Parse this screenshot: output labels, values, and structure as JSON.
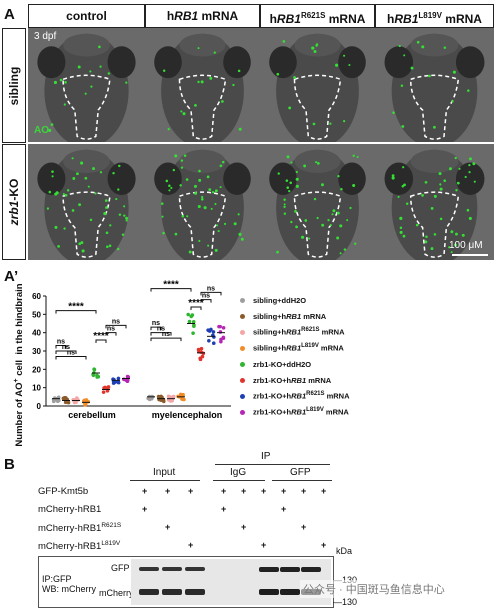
{
  "panel_a": {
    "letter": "A",
    "columns": [
      "control",
      "hRB1 mRNA",
      "hRB1R621S mRNA",
      "hRB1L819V mRNA"
    ],
    "column_parts": [
      {
        "pre": "control",
        "italic": "",
        "sup": "",
        "post": ""
      },
      {
        "pre": "h",
        "italic": "RB1",
        "sup": "",
        "post": " mRNA"
      },
      {
        "pre": "h",
        "italic": "RB1",
        "sup": "R621S",
        "post": " mRNA"
      },
      {
        "pre": "h",
        "italic": "RB1",
        "sup": "L819V",
        "post": " mRNA"
      }
    ],
    "rows": [
      "sibling",
      "zrb1-KO"
    ],
    "stage_label": "3 dpf",
    "stain_label": "AO",
    "scale_bar": "100 μM"
  },
  "panel_a2": {
    "letter": "A’",
    "chart_data": {
      "type": "scatter",
      "ylabel": "Number of AO+ cell  in the hindbrain",
      "ylim": [
        0,
        60
      ],
      "yticks": [
        0,
        10,
        20,
        30,
        40,
        50,
        60
      ],
      "groups": [
        "cerebellum",
        "myelencephalon"
      ],
      "series": [
        {
          "name": "sibling+ddH2O",
          "color": "#9e9e9e",
          "values": [
            4,
            5
          ]
        },
        {
          "name": "sibling+hRB1 mRNA",
          "color": "#8b5a2b",
          "values": [
            3,
            4
          ]
        },
        {
          "name": "sibling+hRB1R621S mRNA",
          "color": "#f4a6a6",
          "values": [
            3,
            4
          ]
        },
        {
          "name": "sibling+hRB1L819V mRNA",
          "color": "#f28c28",
          "values": [
            2,
            5
          ]
        },
        {
          "name": "zrb1-KO+ddH2O",
          "color": "#2fb52f",
          "values": [
            18,
            45
          ]
        },
        {
          "name": "zrb1-KO+hRB1 mRNA",
          "color": "#e0342c",
          "values": [
            9,
            29
          ]
        },
        {
          "name": "zrb1-KO+hRB1R621S mRNA",
          "color": "#1f3fb5",
          "values": [
            14,
            38
          ]
        },
        {
          "name": "zrb1-KO+hRB1L819V mRNA",
          "color": "#b526b5",
          "values": [
            15,
            40
          ]
        }
      ],
      "significance": [
        "****",
        "ns",
        "ns",
        "ns",
        "****",
        "ns",
        "ns",
        "****",
        "ns",
        "ns",
        "ns",
        "****",
        "ns",
        "ns"
      ]
    },
    "legend": [
      {
        "pre": "sibling+ddH2O",
        "italic": "",
        "sup": "",
        "post": ""
      },
      {
        "pre": "sibling+h",
        "italic": "RB1",
        "sup": "",
        "post": " mRNA"
      },
      {
        "pre": "sibling+h",
        "italic": "RB1",
        "sup": "R621S",
        "post": " mRNA"
      },
      {
        "pre": "sibling+h",
        "italic": "RB1",
        "sup": "L819V",
        "post": " mRNA"
      },
      {
        "pre": "zrb1-KO+ddH2O",
        "italic": "",
        "sup": "",
        "post": ""
      },
      {
        "pre": "zrb1-KO+h",
        "italic": "RB1",
        "sup": "",
        "post": " mRNA"
      },
      {
        "pre": "zrb1-KO+h",
        "italic": "RB1",
        "sup": "R621S",
        "post": " mRNA"
      },
      {
        "pre": "zrb1-KO+h",
        "italic": "RB1",
        "sup": "L819V",
        "post": " mRNA"
      }
    ]
  },
  "panel_b": {
    "letter": "B",
    "ip_header": "IP",
    "lane_groups": [
      "Input",
      "IgG",
      "GFP"
    ],
    "row_labels": [
      {
        "pre": "GFP-Kmt5b",
        "sup": ""
      },
      {
        "pre": "mCherry-hRB1",
        "sup": ""
      },
      {
        "pre": "mCherry-hRB1",
        "sup": "R621S"
      },
      {
        "pre": "mCherry-hRB1",
        "sup": "L819V"
      }
    ],
    "plus_rows": [
      [
        "+",
        "+",
        "+",
        "+",
        "+",
        "+",
        "+",
        "+",
        "+"
      ],
      [
        "+",
        "",
        "",
        "+",
        "",
        "",
        "+",
        "",
        ""
      ],
      [
        "",
        "+",
        "",
        "",
        "+",
        "",
        "",
        "+",
        ""
      ],
      [
        "",
        "",
        "+",
        "",
        "",
        "+",
        "",
        "",
        "+"
      ]
    ],
    "kda_label": "kDa",
    "blot_info_1": "IP:GFP",
    "blot_info_2": "WB: mCherry",
    "band_labels": [
      "GFP",
      "mCherry"
    ],
    "kda_markers": [
      "130",
      "130"
    ]
  },
  "watermark": "公众号 · 中国斑马鱼信息中心"
}
